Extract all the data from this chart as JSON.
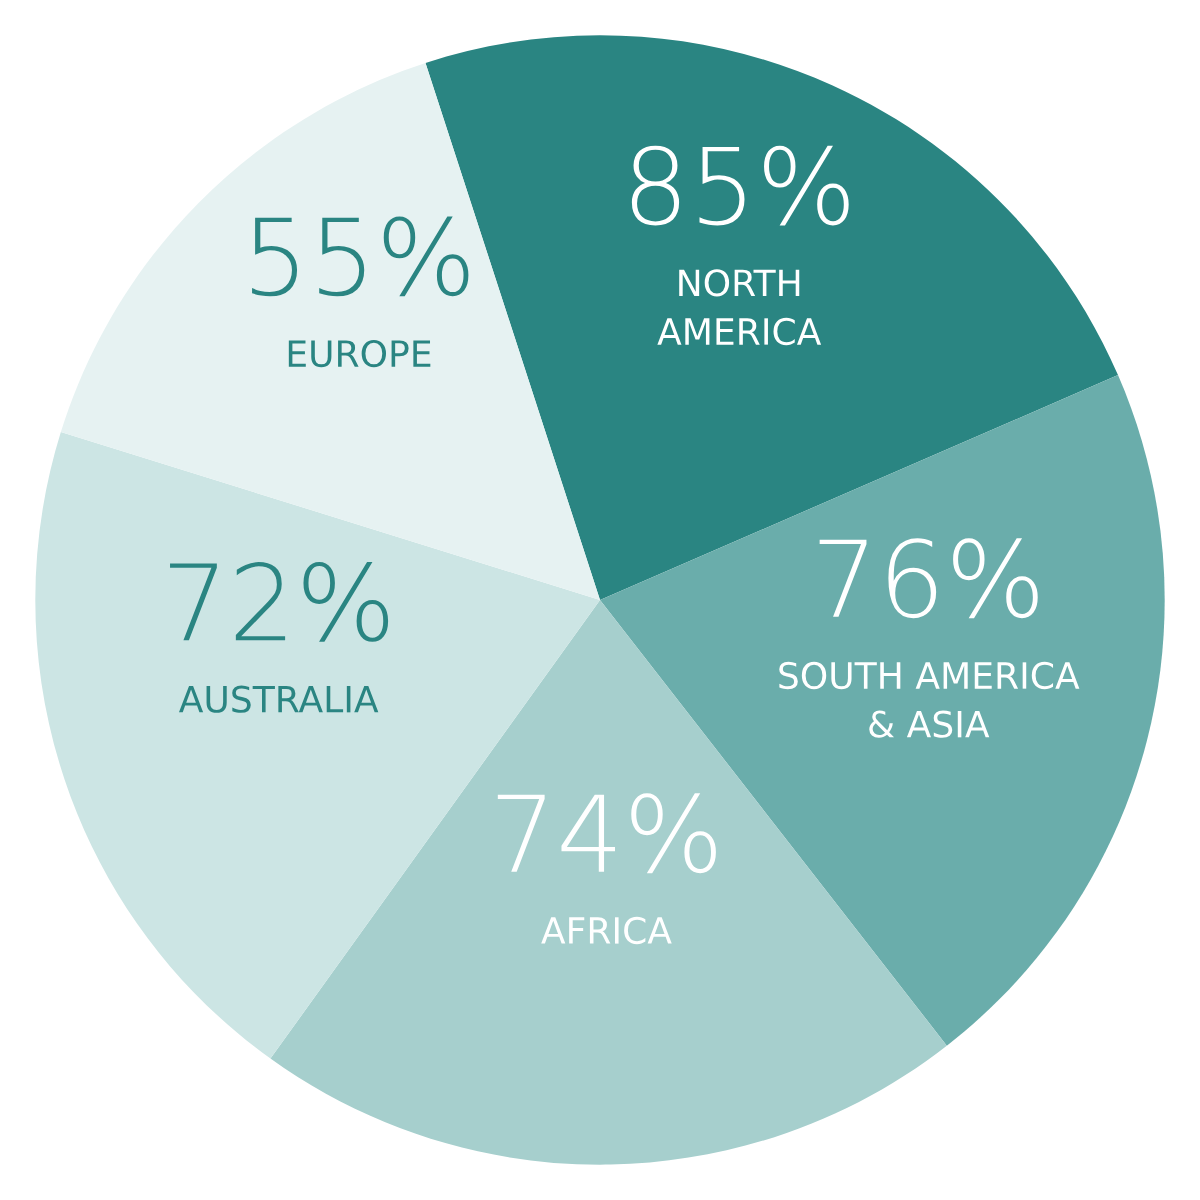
{
  "chart_data": {
    "type": "pie",
    "categories": [
      "NORTH\nAMERICA",
      "SOUTH AMERICA\n& ASIA",
      "AFRICA",
      "AUSTRALIA",
      "EUROPE"
    ],
    "values": [
      85,
      76,
      74,
      72,
      55
    ],
    "value_labels": [
      "85%",
      "76%",
      "74%",
      "72%",
      "55%"
    ],
    "colors": [
      "#2a8582",
      "#6aadab",
      "#a6cfcd",
      "#cce5e4",
      "#e6f2f2"
    ],
    "legend": false
  }
}
